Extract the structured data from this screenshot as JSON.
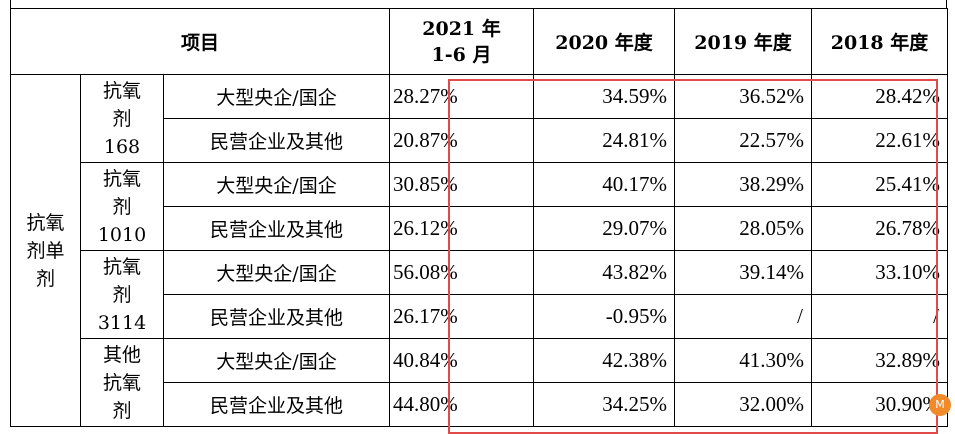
{
  "header": {
    "item": "项目",
    "c2021": "2021 年\n1-6 月",
    "c2020": "2020 年度",
    "c2019": "2019 年度",
    "c2018": "2018 年度"
  },
  "category": "抗氧\n剂单\n剂",
  "groups": [
    {
      "name": "抗氧\n剂\n168",
      "rows": [
        {
          "enterprise": "大型央企/国企",
          "v2021": "28.27%",
          "v2020": "34.59%",
          "v2019": "36.52%",
          "v2018": "28.42%"
        },
        {
          "enterprise": "民营企业及其他",
          "v2021": "20.87%",
          "v2020": "24.81%",
          "v2019": "22.57%",
          "v2018": "22.61%"
        }
      ]
    },
    {
      "name": "抗氧\n剂\n1010",
      "rows": [
        {
          "enterprise": "大型央企/国企",
          "v2021": "30.85%",
          "v2020": "40.17%",
          "v2019": "38.29%",
          "v2018": "25.41%"
        },
        {
          "enterprise": "民营企业及其他",
          "v2021": "26.12%",
          "v2020": "29.07%",
          "v2019": "28.05%",
          "v2018": "26.78%"
        }
      ]
    },
    {
      "name": "抗氧\n剂\n3114",
      "rows": [
        {
          "enterprise": "大型央企/国企",
          "v2021": "56.08%",
          "v2020": "43.82%",
          "v2019": "39.14%",
          "v2018": "33.10%"
        },
        {
          "enterprise": "民营企业及其他",
          "v2021": "26.17%",
          "v2020": "-0.95%",
          "v2019": "/",
          "v2018": "/"
        }
      ]
    },
    {
      "name": "其他\n抗氧\n剂",
      "rows": [
        {
          "enterprise": "大型央企/国企",
          "v2021": "40.84%",
          "v2020": "42.38%",
          "v2019": "41.30%",
          "v2018": "32.89%"
        },
        {
          "enterprise": "民营企业及其他",
          "v2021": "44.80%",
          "v2020": "34.25%",
          "v2019": "32.00%",
          "v2018": "30.90%"
        }
      ]
    }
  ],
  "watermark": {
    "text": "M",
    "color": "#f08a2a"
  },
  "highlight_color": "#e24a4a"
}
